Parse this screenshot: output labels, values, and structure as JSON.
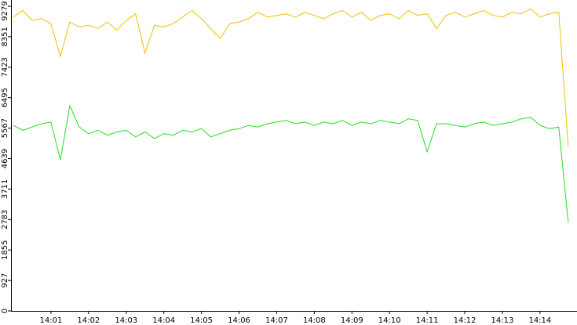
{
  "chart_data": {
    "type": "line",
    "categories": [
      null,
      null,
      null,
      null,
      "14:01",
      null,
      null,
      null,
      "14:02",
      null,
      null,
      null,
      "14:03",
      null,
      null,
      null,
      "14:04",
      null,
      null,
      null,
      "14:05",
      null,
      null,
      null,
      "14:06",
      null,
      null,
      null,
      "14:07",
      null,
      null,
      null,
      "14:08",
      null,
      null,
      null,
      "14:09",
      null,
      null,
      null,
      "14:10",
      null,
      null,
      null,
      "14:11",
      null,
      null,
      null,
      "14:12",
      null,
      null,
      null,
      "14:13",
      null,
      null,
      null,
      "14:14",
      null,
      null,
      null
    ],
    "series": [
      {
        "color": "#f0c000",
        "values": [
          8950,
          9150,
          8850,
          8900,
          8750,
          7750,
          8800,
          8650,
          8700,
          8600,
          8800,
          8550,
          8850,
          9050,
          7850,
          8700,
          8650,
          8750,
          8950,
          9150,
          8900,
          8600,
          8300,
          8750,
          8800,
          8900,
          9100,
          8950,
          9000,
          9050,
          8950,
          9100,
          9000,
          8900,
          9050,
          9150,
          8950,
          9100,
          8850,
          9000,
          9050,
          8900,
          9150,
          9000,
          9050,
          8600,
          9000,
          9100,
          8950,
          9050,
          9150,
          9000,
          8950,
          9100,
          9050,
          9200,
          8950,
          9050,
          9100,
          5000
        ]
      },
      {
        "color": "#22dd22",
        "values": [
          5650,
          5500,
          5600,
          5700,
          5750,
          4600,
          6250,
          5600,
          5400,
          5500,
          5350,
          5450,
          5500,
          5300,
          5450,
          5250,
          5400,
          5350,
          5500,
          5450,
          5550,
          5300,
          5400,
          5500,
          5550,
          5650,
          5600,
          5700,
          5750,
          5800,
          5700,
          5750,
          5650,
          5750,
          5700,
          5800,
          5650,
          5750,
          5700,
          5800,
          5750,
          5700,
          5850,
          5800,
          4850,
          5700,
          5700,
          5650,
          5600,
          5700,
          5750,
          5650,
          5700,
          5750,
          5850,
          5900,
          5650,
          5550,
          5600,
          2700
        ]
      }
    ],
    "ylim": [
      0,
      9279
    ],
    "yticks": [
      0,
      927,
      1855,
      2783,
      3711,
      4639,
      5567,
      6495,
      7423,
      8351,
      9279
    ]
  }
}
